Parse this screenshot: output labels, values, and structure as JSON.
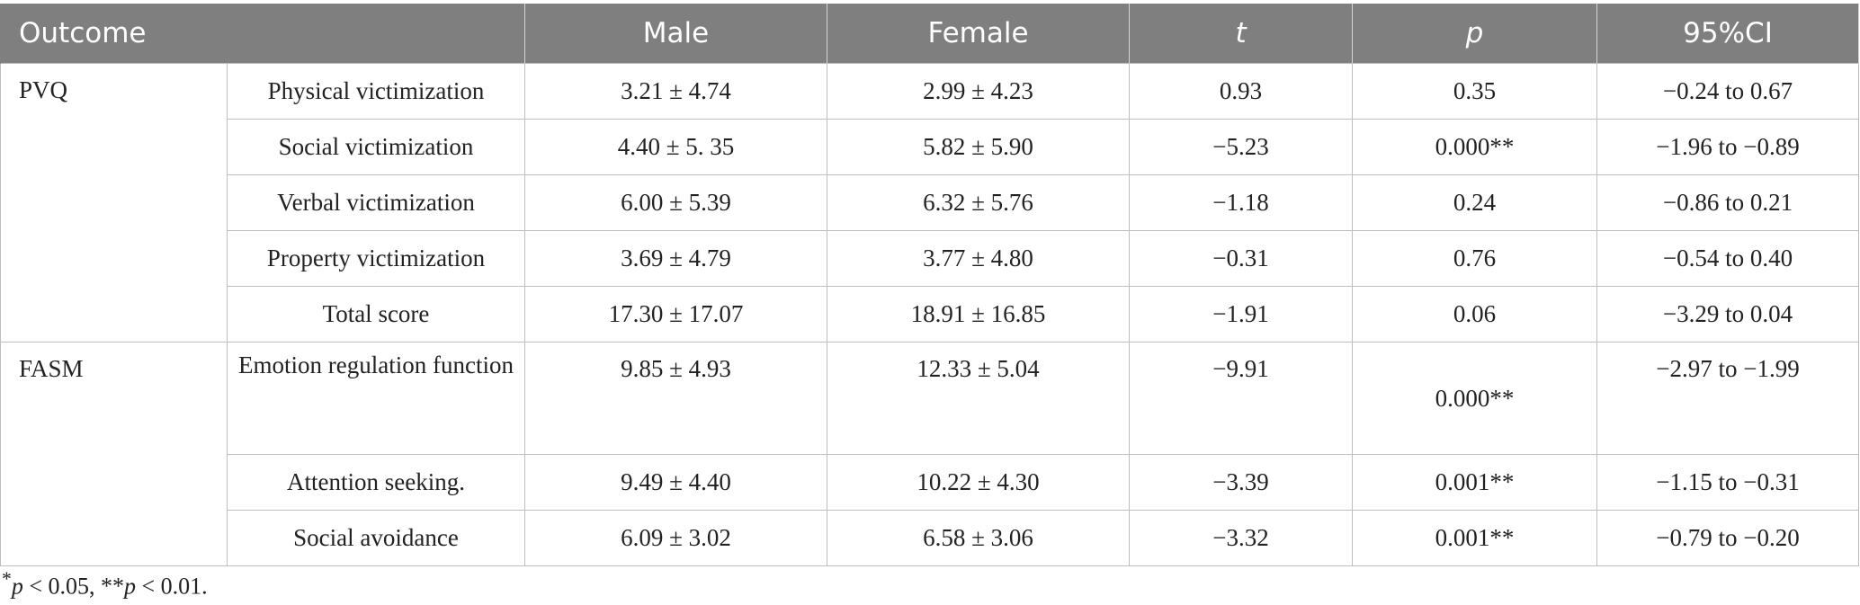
{
  "table": {
    "headers": [
      "Outcome",
      "",
      "Male",
      "Female",
      "t",
      "p",
      "95%CI"
    ],
    "groups": [
      {
        "name": "PVQ",
        "rows": [
          [
            "Physical victimization",
            "3.21 ± 4.74",
            "2.99 ± 4.23",
            "0.93",
            "0.35",
            "−0.24 to 0.67"
          ],
          [
            "Social victimization",
            "4.40 ± 5. 35",
            "5.82 ± 5.90",
            "−5.23",
            "0.000**",
            "−1.96 to −0.89"
          ],
          [
            "Verbal victimization",
            "6.00 ± 5.39",
            "6.32 ± 5.76",
            "−1.18",
            "0.24",
            "−0.86 to 0.21"
          ],
          [
            "Property victimization",
            "3.69 ± 4.79",
            "3.77 ± 4.80",
            "−0.31",
            "0.76",
            "−0.54 to 0.40"
          ],
          [
            "Total score",
            "17.30 ± 17.07",
            "18.91 ± 16.85",
            "−1.91",
            "0.06",
            "−3.29 to 0.04"
          ]
        ]
      },
      {
        "name": "FASM",
        "rows": [
          [
            "Emotion regulation function",
            "9.85 ± 4.93",
            "12.33 ± 5.04",
            "−9.91",
            "0.000**",
            "−2.97 to −1.99"
          ],
          [
            "Attention seeking.",
            "9.49 ± 4.40",
            "10.22 ± 4.30",
            "−3.39",
            "0.001**",
            "−1.15 to −0.31"
          ],
          [
            "Social avoidance",
            "6.09 ± 3.02",
            "6.58 ± 3.06",
            "−3.32",
            "0.001**",
            "−0.79 to −0.20"
          ]
        ]
      }
    ]
  },
  "footnote": {
    "p1": "p",
    "t1": " < 0.05, **",
    "p2": "p",
    "t2": " < 0.01."
  }
}
